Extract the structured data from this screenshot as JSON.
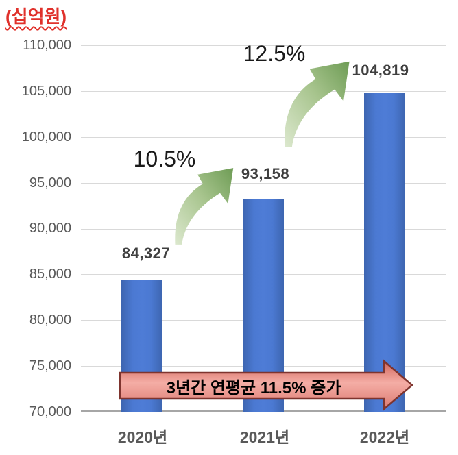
{
  "chart_data": {
    "type": "bar",
    "unit_label": "(십억원)",
    "categories": [
      "2020년",
      "2021년",
      "2022년"
    ],
    "values": [
      84327,
      93158,
      104819
    ],
    "value_labels": [
      "84,327",
      "93,158",
      "104,819"
    ],
    "growth_annotations": [
      {
        "label": "10.5%",
        "from": "2020년",
        "to": "2021년"
      },
      {
        "label": "12.5%",
        "from": "2021년",
        "to": "2022년"
      }
    ],
    "banner_label": "3년간 연평균 11.5% 증가",
    "ylim": [
      70000,
      110000
    ],
    "ytick_step": 5000,
    "yticks": [
      "110,000",
      "105,000",
      "100,000",
      "95,000",
      "90,000",
      "85,000",
      "80,000",
      "75,000",
      "70,000"
    ],
    "grid": true,
    "legend": "none",
    "colors": {
      "bar": "#4673C8",
      "grid": "#D9D9D9",
      "axis_line": "#A6A6A6",
      "tick_text": "#595959",
      "value_text": "#3F3F3F",
      "unit_text": "#E0312B",
      "growth_arrow_light": "#DCE8CE",
      "growth_arrow_mid": "#A7C48D",
      "growth_arrow_dark": "#6E9C55",
      "banner_fill_top": "#D06459",
      "banner_fill_mid": "#F4ADA5",
      "banner_fill_bottom": "#DC7A71",
      "banner_border": "#7E342E"
    }
  }
}
